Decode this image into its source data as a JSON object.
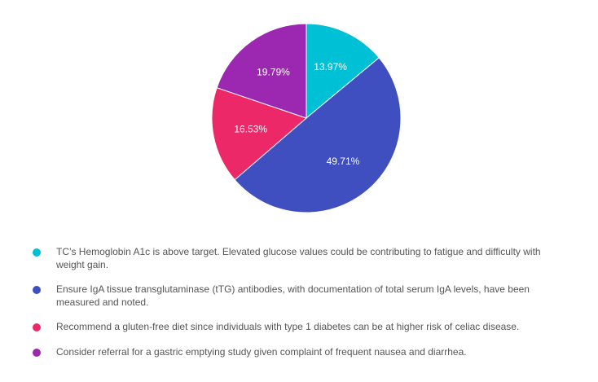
{
  "chart_data": {
    "type": "pie",
    "title": "",
    "slices": [
      {
        "label": "TC’s Hemoglobin A1c is above target. Elevated glucose values could be contributing to fatigue and difficulty with weight gain.",
        "value": 13.97,
        "display": "13.97%",
        "color": "#00c0d6"
      },
      {
        "label": "Ensure IgA tissue transglutaminase (tTG) antibodies, with documentation of total serum IgA levels, have been measured and noted.",
        "value": 49.71,
        "display": "49.71%",
        "color": "#3f4fbf"
      },
      {
        "label": "Recommend a gluten-free diet since individuals with type 1 diabetes can be at higher risk of celiac disease.",
        "value": 16.53,
        "display": "16.53%",
        "color": "#ec2869"
      },
      {
        "label": "Consider referral for a gastric emptying study given complaint of frequent nausea and diarrhea.",
        "value": 19.79,
        "display": "19.79%",
        "color": "#9c27b0"
      }
    ],
    "legend_position": "bottom",
    "start_angle": "12 o'clock, clockwise"
  }
}
